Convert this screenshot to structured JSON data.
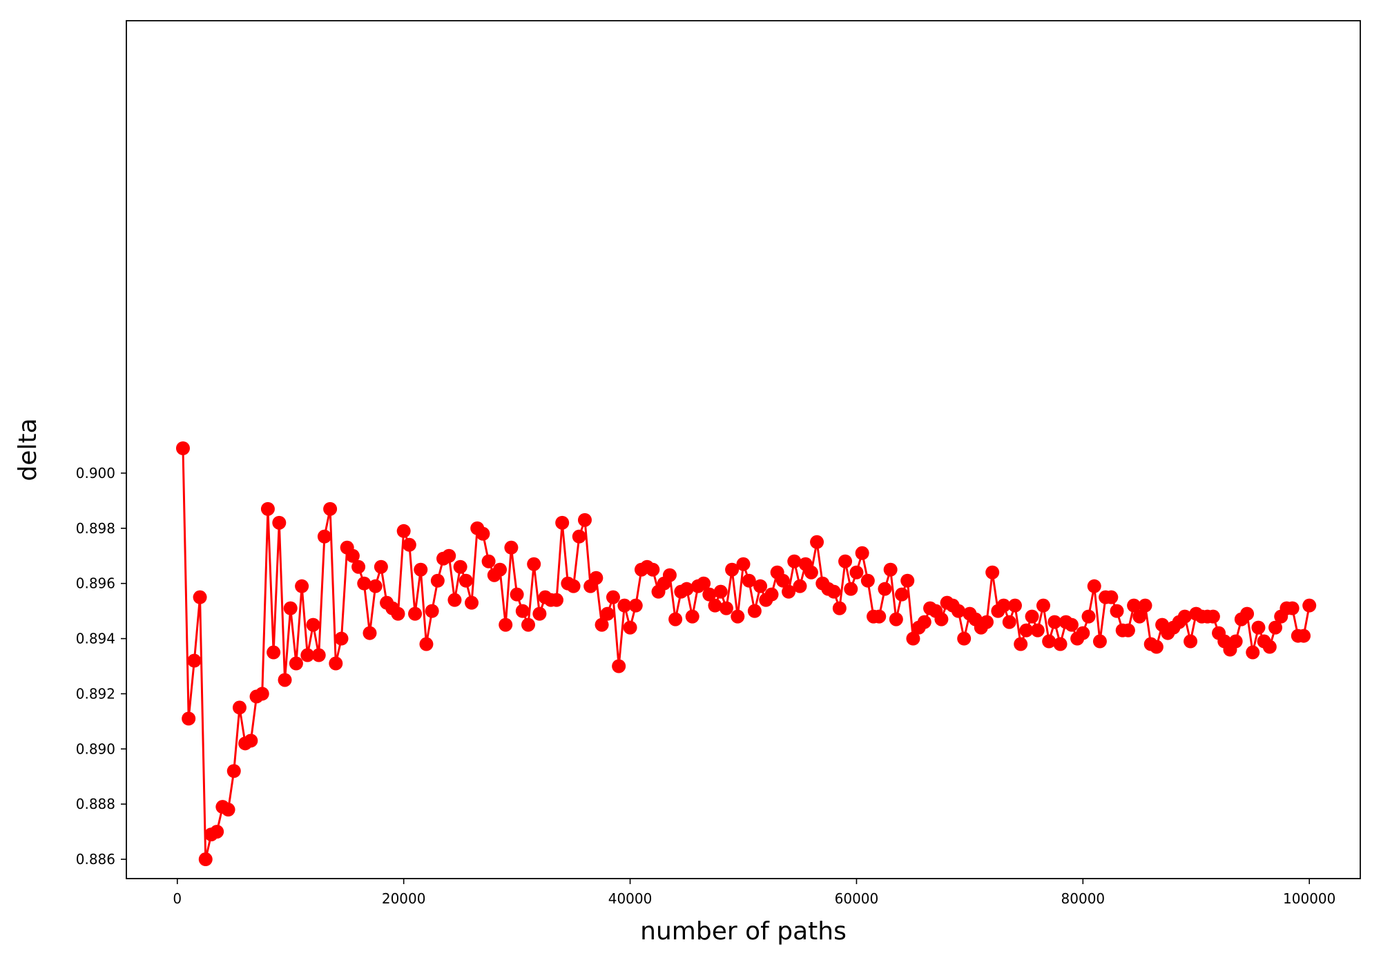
{
  "chart_data": {
    "type": "line",
    "title": "",
    "xlabel": "number of paths",
    "ylabel": "delta",
    "xlim": [
      -4500,
      104500
    ],
    "ylim": [
      0.8853,
      0.9164
    ],
    "x_ticks": [
      0,
      20000,
      40000,
      60000,
      80000,
      100000
    ],
    "x_tick_labels": [
      "0",
      "20000",
      "40000",
      "60000",
      "80000",
      "100000"
    ],
    "y_ticks": [
      0.886,
      0.888,
      0.89,
      0.892,
      0.894,
      0.896,
      0.898,
      0.9
    ],
    "y_tick_labels": [
      "0.886",
      "0.888",
      "0.890",
      "0.892",
      "0.894",
      "0.896",
      "0.898",
      "0.900"
    ],
    "grid": false,
    "legend": "none",
    "series": [
      {
        "color": "#ff0000",
        "marker": "circle",
        "x_start": 500,
        "x_step": 500,
        "values": [
          0.9009,
          0.8911,
          0.8932,
          0.8955,
          0.886,
          0.8869,
          0.887,
          0.8879,
          0.8878,
          0.8892,
          0.8915,
          0.8902,
          0.8903,
          0.8919,
          0.892,
          0.8987,
          0.8935,
          0.8982,
          0.8925,
          0.8951,
          0.8931,
          0.8959,
          0.8934,
          0.8945,
          0.8934,
          0.8977,
          0.8987,
          0.8931,
          0.894,
          0.8973,
          0.897,
          0.8966,
          0.896,
          0.8942,
          0.8959,
          0.8966,
          0.8953,
          0.8951,
          0.8949,
          0.8979,
          0.8974,
          0.8949,
          0.8965,
          0.8938,
          0.895,
          0.8961,
          0.8969,
          0.897,
          0.8954,
          0.8966,
          0.8961,
          0.8953,
          0.898,
          0.8978,
          0.8968,
          0.8963,
          0.8965,
          0.8945,
          0.8973,
          0.8956,
          0.895,
          0.8945,
          0.8967,
          0.8949,
          0.8955,
          0.8954,
          0.8954,
          0.8982,
          0.896,
          0.8959,
          0.8977,
          0.8983,
          0.8959,
          0.8962,
          0.8945,
          0.8949,
          0.8955,
          0.893,
          0.8952,
          0.8944,
          0.8952,
          0.8965,
          0.8966,
          0.8965,
          0.8957,
          0.896,
          0.8963,
          0.8947,
          0.8957,
          0.8958,
          0.8948,
          0.8959,
          0.896,
          0.8956,
          0.8952,
          0.8957,
          0.8951,
          0.8965,
          0.8948,
          0.8967,
          0.8961,
          0.895,
          0.8959,
          0.8954,
          0.8956,
          0.8964,
          0.8961,
          0.8957,
          0.8968,
          0.8959,
          0.8967,
          0.8964,
          0.8975,
          0.896,
          0.8958,
          0.8957,
          0.8951,
          0.8968,
          0.8958,
          0.8964,
          0.8971,
          0.8961,
          0.8948,
          0.8948,
          0.8958,
          0.8965,
          0.8947,
          0.8956,
          0.8961,
          0.894,
          0.8944,
          0.8946,
          0.8951,
          0.895,
          0.8947,
          0.8953,
          0.8952,
          0.895,
          0.894,
          0.8949,
          0.8947,
          0.8944,
          0.8946,
          0.8964,
          0.895,
          0.8952,
          0.8946,
          0.8952,
          0.8938,
          0.8943,
          0.8948,
          0.8943,
          0.8952,
          0.8939,
          0.8946,
          0.8938,
          0.8946,
          0.8945,
          0.894,
          0.8942,
          0.8948,
          0.8959,
          0.8939,
          0.8955,
          0.8955,
          0.895,
          0.8943,
          0.8943,
          0.8952,
          0.8948,
          0.8952,
          0.8938,
          0.8937,
          0.8945,
          0.8942,
          0.8944,
          0.8946,
          0.8948,
          0.8939,
          0.8949,
          0.8948,
          0.8948,
          0.8948,
          0.8942,
          0.8939,
          0.8936,
          0.8939,
          0.8947,
          0.8949,
          0.8935,
          0.8944,
          0.8939,
          0.8937,
          0.8944,
          0.8948,
          0.8951,
          0.8951,
          0.8941,
          0.8941,
          0.8952
        ]
      }
    ]
  }
}
